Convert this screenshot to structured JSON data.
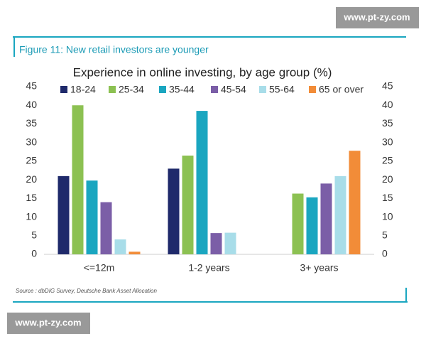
{
  "watermark_top": "www.pt-zy.com",
  "watermark_bottom": "www.pt-zy.com",
  "figure_label": "Figure 11: New retail investors are younger",
  "source": "Source : dbDIG Survey, Deutsche Bank Asset Allocation",
  "chart_data": {
    "type": "bar",
    "title": "Experience in online investing, by age group (%)",
    "categories": [
      "<=12m",
      "1-2 years",
      "3+ years"
    ],
    "series": [
      {
        "name": "18-24",
        "color": "#1f2a6b",
        "values": [
          21,
          23,
          null
        ]
      },
      {
        "name": "25-34",
        "color": "#8cc152",
        "values": [
          40,
          26.5,
          16.3
        ]
      },
      {
        "name": "35-44",
        "color": "#1aa6c0",
        "values": [
          19.8,
          38.5,
          15.3
        ]
      },
      {
        "name": "45-54",
        "color": "#7b5ea7",
        "values": [
          14,
          5.7,
          19
        ]
      },
      {
        "name": "55-64",
        "color": "#a8dde9",
        "values": [
          4,
          5.8,
          21
        ]
      },
      {
        "name": "65 or over",
        "color": "#f28c38",
        "values": [
          0.7,
          null,
          27.8
        ]
      }
    ],
    "ylim": [
      0,
      45
    ],
    "yticks": [
      0,
      5,
      10,
      15,
      20,
      25,
      30,
      35,
      40,
      45
    ],
    "y2lim": [
      0,
      45
    ],
    "y2ticks": [
      0,
      5,
      10,
      15,
      20,
      25,
      30,
      35,
      40,
      45
    ],
    "legend": "top",
    "grid": false
  }
}
